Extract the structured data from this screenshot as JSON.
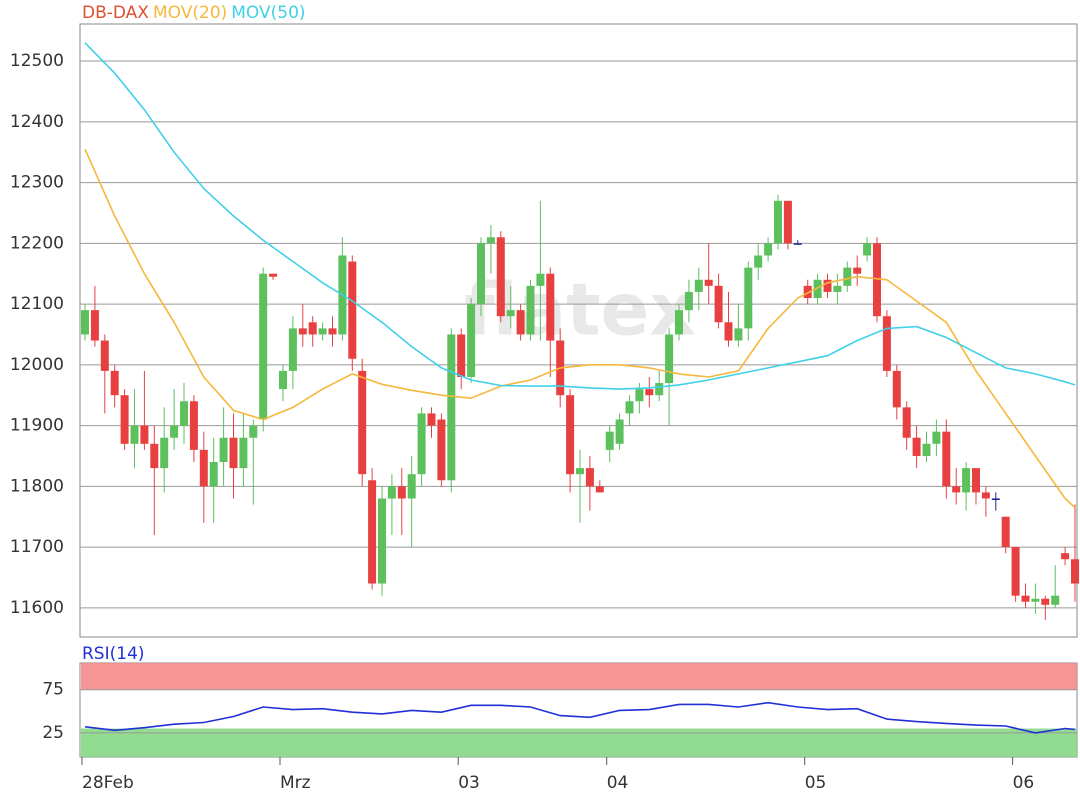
{
  "chart_data": {
    "type": "candlestick",
    "title": "DB-DAX",
    "title_color": "#e05030",
    "watermark": "flatex",
    "up_color": "#5cc05c",
    "down_color": "#e84040",
    "flat_color": "#20208a",
    "ylim": [
      11552,
      12561
    ],
    "yticks": [
      11600,
      11700,
      11800,
      11900,
      12000,
      12100,
      12200,
      12300,
      12400,
      12500
    ],
    "grid": true,
    "xticks": [
      {
        "value": 0,
        "label": "28Feb"
      },
      {
        "value": 20,
        "label": "Mrz"
      },
      {
        "value": 38,
        "label": "03"
      },
      {
        "value": 53,
        "label": "04"
      },
      {
        "value": 73,
        "label": "05"
      },
      {
        "value": 94,
        "label": "06"
      }
    ],
    "candles": {
      "open": [
        12050,
        12090,
        12040,
        11990,
        11950,
        11870,
        11900,
        11870,
        11830,
        11880,
        11900,
        11940,
        11860,
        11800,
        11840,
        11880,
        11830,
        11880,
        11910,
        12150,
        11960,
        11990,
        12060,
        12070,
        12050,
        12060,
        12050,
        12170,
        11990,
        11810,
        11640,
        11780,
        11800,
        11780,
        11820,
        11920,
        11910,
        11810,
        12050,
        11980,
        12100,
        12200,
        12210,
        12080,
        12090,
        12050,
        12130,
        12150,
        12040,
        11950,
        11820,
        11830,
        11800,
        11860,
        11870,
        11920,
        11940,
        11960,
        11950,
        11970,
        12050,
        12090,
        12120,
        12140,
        12130,
        12070,
        12040,
        12060,
        12160,
        12180,
        12200,
        12270,
        12200,
        12130,
        12110,
        12140,
        12120,
        12130,
        12160,
        12180,
        12200,
        12080,
        11990,
        11930,
        11880,
        11850,
        11870,
        11890,
        11800,
        11790,
        11830,
        11790,
        11780,
        11750,
        11700,
        11620,
        11610,
        11615,
        11605,
        11690,
        11680
      ],
      "high": [
        12100,
        12130,
        12050,
        12000,
        11960,
        11960,
        11990,
        11900,
        11930,
        11960,
        11970,
        11950,
        11890,
        11880,
        11930,
        11920,
        11920,
        11910,
        12160,
        12150,
        12000,
        12080,
        12100,
        12080,
        12070,
        12080,
        12210,
        12180,
        12010,
        11830,
        11800,
        11820,
        11830,
        11850,
        11930,
        11930,
        11920,
        12060,
        12060,
        12110,
        12210,
        12230,
        12220,
        12130,
        12100,
        12140,
        12270,
        12160,
        12060,
        11960,
        11860,
        11850,
        11810,
        11900,
        11920,
        11950,
        11970,
        11980,
        11990,
        12060,
        12100,
        12140,
        12160,
        12200,
        12150,
        12120,
        12100,
        12170,
        12200,
        12210,
        12280,
        12270,
        12205,
        12140,
        12150,
        12150,
        12150,
        12170,
        12180,
        12210,
        12210,
        12090,
        12000,
        11940,
        11900,
        11890,
        11910,
        11910,
        11830,
        11840,
        11830,
        11800,
        11790,
        11750,
        11700,
        11640,
        11640,
        11620,
        11670,
        11700,
        11770
      ],
      "low": [
        12040,
        12030,
        11920,
        11930,
        11860,
        11830,
        11860,
        11720,
        11790,
        11860,
        11870,
        11840,
        11740,
        11740,
        11800,
        11780,
        11800,
        11770,
        11890,
        12140,
        11940,
        11960,
        12030,
        12030,
        12040,
        12030,
        12040,
        11990,
        11800,
        11630,
        11620,
        11720,
        11720,
        11700,
        11800,
        11880,
        11800,
        11790,
        11960,
        11970,
        12080,
        12150,
        12070,
        12060,
        12040,
        12040,
        12040,
        11980,
        11930,
        11790,
        11740,
        11760,
        11790,
        11840,
        11860,
        11900,
        11920,
        11930,
        11940,
        11900,
        12040,
        12070,
        12090,
        12100,
        12060,
        12030,
        12030,
        12040,
        12140,
        12170,
        12190,
        12190,
        12200,
        12100,
        12100,
        12110,
        12100,
        12120,
        12130,
        12170,
        12070,
        11980,
        11910,
        11860,
        11830,
        11840,
        11850,
        11780,
        11770,
        11760,
        11770,
        11750,
        11760,
        11690,
        11610,
        11600,
        11590,
        11580,
        11600,
        11670,
        11610
      ],
      "close": [
        12090,
        12040,
        11990,
        11950,
        11870,
        11900,
        11870,
        11830,
        11880,
        11900,
        11940,
        11860,
        11800,
        11840,
        11880,
        11830,
        11880,
        11900,
        12150,
        12145,
        11990,
        12060,
        12050,
        12050,
        12060,
        12050,
        12180,
        12010,
        11820,
        11640,
        11780,
        11800,
        11780,
        11820,
        11920,
        11900,
        11810,
        12050,
        11980,
        12100,
        12200,
        12210,
        12080,
        12090,
        12050,
        12130,
        12150,
        12040,
        11950,
        11820,
        11830,
        11800,
        11790,
        11890,
        11910,
        11940,
        11960,
        11950,
        11970,
        12050,
        12090,
        12120,
        12140,
        12130,
        12070,
        12040,
        12060,
        12160,
        12180,
        12200,
        12270,
        12200,
        12200,
        12110,
        12140,
        12120,
        12130,
        12160,
        12150,
        12200,
        12080,
        11990,
        11930,
        11880,
        11850,
        11870,
        11890,
        11800,
        11790,
        11830,
        11790,
        11780,
        11780,
        11700,
        11620,
        11610,
        11615,
        11605,
        11620,
        11680,
        11640
      ]
    },
    "overlays": {
      "x": [
        0,
        3,
        6,
        9,
        12,
        15,
        18,
        21,
        24,
        27,
        30,
        33,
        36,
        39,
        42,
        45,
        48,
        51,
        54,
        57,
        60,
        63,
        66,
        69,
        72,
        75,
        78,
        81,
        84,
        87,
        90,
        93,
        96,
        99,
        100
      ],
      "series": [
        {
          "name": "MOV(20)",
          "color": "#f5b83d",
          "values": [
            12355,
            12245,
            12150,
            12070,
            11980,
            11925,
            11910,
            11930,
            11960,
            11985,
            11968,
            11958,
            11950,
            11945,
            11965,
            11975,
            11995,
            12000,
            12000,
            11995,
            11985,
            11980,
            11990,
            12060,
            12110,
            12135,
            12145,
            12140,
            12105,
            12070,
            11990,
            11920,
            11850,
            11780,
            11765
          ]
        },
        {
          "name": "MOV(50)",
          "color": "#40d0e8",
          "values": [
            12530,
            12480,
            12420,
            12350,
            12290,
            12245,
            12205,
            12170,
            12135,
            12105,
            12070,
            12030,
            11995,
            11975,
            11966,
            11965,
            11965,
            11962,
            11960,
            11962,
            11967,
            11975,
            11985,
            11995,
            12005,
            12015,
            12040,
            12060,
            12063,
            12045,
            12020,
            11995,
            11985,
            11972,
            11967
          ]
        }
      ]
    },
    "rsi": {
      "name": "RSI(14)",
      "color": "#2030d8",
      "ylim": [
        -3,
        106
      ],
      "yticks": [
        25,
        75
      ],
      "bands": [
        {
          "from": 75,
          "to": 106,
          "color": "#f58a8a"
        },
        {
          "from": -3,
          "to": 30,
          "color": "#86d886"
        }
      ],
      "values": [
        32,
        28,
        31,
        35,
        37,
        44,
        55,
        52,
        53,
        49,
        47,
        51,
        49,
        57,
        57,
        55,
        45,
        43,
        51,
        52,
        58,
        58,
        55,
        60,
        55,
        52,
        53,
        41,
        38,
        36,
        34,
        33,
        25,
        30,
        29
      ]
    }
  }
}
